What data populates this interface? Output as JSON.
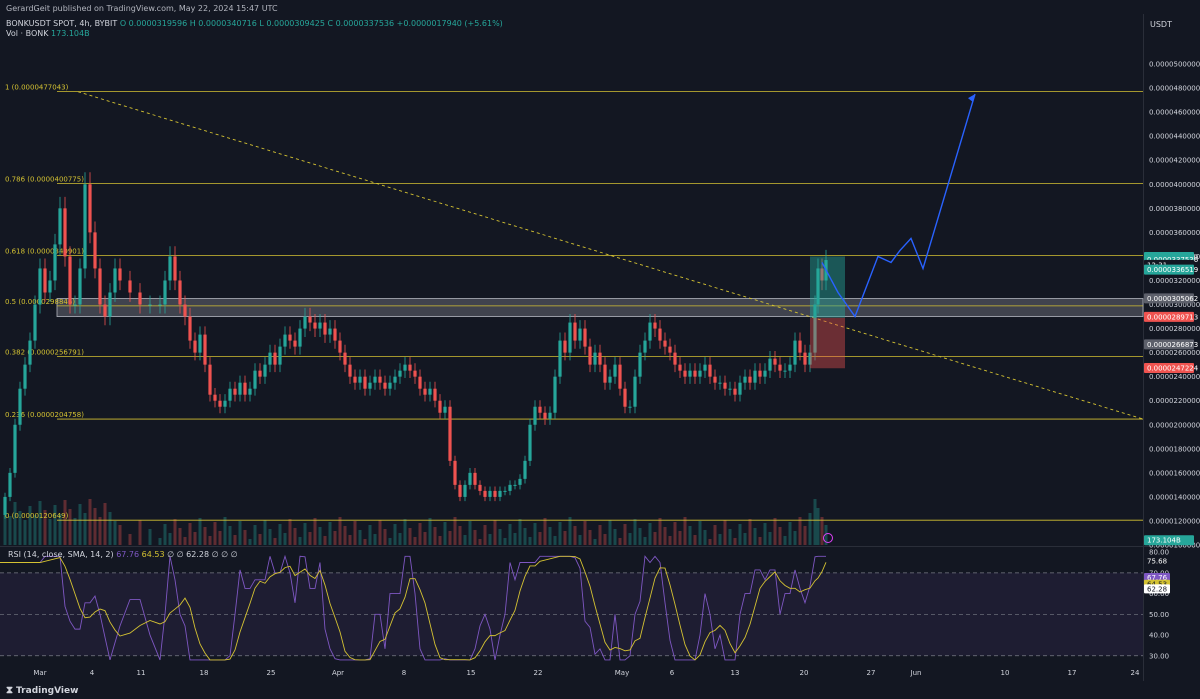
{
  "header": {
    "publisher": "GerardGeit published on TradingView.com, May 22, 2024 15:47 UTC",
    "symbol": "BONKUSDT SPOT, 4h, BYBIT",
    "ohlc": "O 0.0000319596  H 0.0000340716  L 0.0000309425  C 0.0000337536  +0.0000017940 (+5.61%)",
    "volume_label": "Vol · BONK",
    "volume_value": "173.104B",
    "currency": "USDT"
  },
  "rsi_header": {
    "label": "RSI (14, close, SMA, 14, 2)",
    "v1": "67.76",
    "v2": "64.53",
    "v3": "∅",
    "v4": "∅",
    "v5": "62.28",
    "v6": "∅ ∅ ∅"
  },
  "footer": {
    "brand": "TradingView"
  },
  "colors": {
    "background": "#131722",
    "fib_line": "#d4c232",
    "trendline": "#d4c232",
    "projection": "#2962ff",
    "up": "#26a69a",
    "down": "#ef5350",
    "rsi": "#7e57c2",
    "rsi_ma": "#d4c232"
  },
  "chart_data": {
    "type": "candlestick",
    "title": "BONKUSDT SPOT, 4h, BYBIT",
    "ylim": [
      1e-05,
      5.2e-05
    ],
    "yticks": [
      "0.0000500000",
      "0.0000480000",
      "0.0000460000",
      "0.0000440000",
      "0.0000420000",
      "0.0000400000",
      "0.0000380000",
      "0.0000360000",
      "0.0000340000",
      "0.0000320000",
      "0.0000300000",
      "0.0000280000",
      "0.0000260000",
      "0.0000240000",
      "0.0000220000",
      "0.0000200000",
      "0.0000180000",
      "0.0000160000",
      "0.0000140000",
      "0.0000120000",
      "0.0000100000"
    ],
    "xticks": [
      "Mar",
      "4",
      "11",
      "18",
      "25",
      "Apr",
      "8",
      "15",
      "22",
      "May",
      "6",
      "13",
      "20",
      "27",
      "Jun",
      "10",
      "17",
      "24"
    ],
    "fib_levels": [
      {
        "label": "1 (0.0000477043)",
        "value": 4.77043e-05
      },
      {
        "label": "0.786 (0.0000400775)",
        "value": 4.00775e-05
      },
      {
        "label": "0.618 (0.0000340901)",
        "value": 3.40901e-05
      },
      {
        "label": "0.5 (0.0000298846)",
        "value": 2.98846e-05
      },
      {
        "label": "0.382 (0.0000256791)",
        "value": 2.56791e-05
      },
      {
        "label": "0.236 (0.0000204758)",
        "value": 2.04758e-05
      },
      {
        "label": "0 (0.0000120649)",
        "value": 1.20649e-05
      }
    ],
    "price_path": [
      [
        0,
        1.25e-05
      ],
      [
        5,
        1.4e-05
      ],
      [
        10,
        1.6e-05
      ],
      [
        15,
        2e-05
      ],
      [
        20,
        2.3e-05
      ],
      [
        25,
        2.5e-05
      ],
      [
        30,
        2.7e-05
      ],
      [
        35,
        3e-05
      ],
      [
        40,
        3.3e-05
      ],
      [
        45,
        3.1e-05
      ],
      [
        50,
        3.2e-05
      ],
      [
        55,
        3.5e-05
      ],
      [
        60,
        3.8e-05
      ],
      [
        65,
        3.4e-05
      ],
      [
        70,
        3e-05
      ],
      [
        75,
        3e-05
      ],
      [
        80,
        3.3e-05
      ],
      [
        85,
        4e-05
      ],
      [
        90,
        3.6e-05
      ],
      [
        95,
        3.3e-05
      ],
      [
        100,
        3e-05
      ],
      [
        105,
        2.9e-05
      ],
      [
        110,
        3.1e-05
      ],
      [
        115,
        3.3e-05
      ],
      [
        120,
        3.2e-05
      ],
      [
        130,
        3.1e-05
      ],
      [
        140,
        3e-05
      ],
      [
        150,
        3e-05
      ],
      [
        160,
        3e-05
      ],
      [
        165,
        3.2e-05
      ],
      [
        170,
        3.4e-05
      ],
      [
        175,
        3.2e-05
      ],
      [
        180,
        3e-05
      ],
      [
        185,
        2.9e-05
      ],
      [
        190,
        2.7e-05
      ],
      [
        195,
        2.6e-05
      ],
      [
        200,
        2.75e-05
      ],
      [
        205,
        2.5e-05
      ],
      [
        210,
        2.25e-05
      ],
      [
        215,
        2.2e-05
      ],
      [
        220,
        2.15e-05
      ],
      [
        225,
        2.2e-05
      ],
      [
        230,
        2.3e-05
      ],
      [
        235,
        2.25e-05
      ],
      [
        240,
        2.35e-05
      ],
      [
        245,
        2.25e-05
      ],
      [
        250,
        2.3e-05
      ],
      [
        255,
        2.45e-05
      ],
      [
        260,
        2.4e-05
      ],
      [
        265,
        2.5e-05
      ],
      [
        270,
        2.6e-05
      ],
      [
        275,
        2.5e-05
      ],
      [
        280,
        2.65e-05
      ],
      [
        285,
        2.75e-05
      ],
      [
        290,
        2.7e-05
      ],
      [
        295,
        2.65e-05
      ],
      [
        300,
        2.8e-05
      ],
      [
        305,
        2.9e-05
      ],
      [
        310,
        2.85e-05
      ],
      [
        315,
        2.8e-05
      ],
      [
        320,
        2.85e-05
      ],
      [
        325,
        2.75e-05
      ],
      [
        330,
        2.8e-05
      ],
      [
        335,
        2.7e-05
      ],
      [
        340,
        2.6e-05
      ],
      [
        345,
        2.5e-05
      ],
      [
        350,
        2.4e-05
      ],
      [
        355,
        2.35e-05
      ],
      [
        360,
        2.4e-05
      ],
      [
        365,
        2.3e-05
      ],
      [
        370,
        2.35e-05
      ],
      [
        375,
        2.4e-05
      ],
      [
        380,
        2.35e-05
      ],
      [
        385,
        2.3e-05
      ],
      [
        390,
        2.35e-05
      ],
      [
        395,
        2.4e-05
      ],
      [
        400,
        2.45e-05
      ],
      [
        405,
        2.5e-05
      ],
      [
        410,
        2.45e-05
      ],
      [
        415,
        2.4e-05
      ],
      [
        420,
        2.3e-05
      ],
      [
        425,
        2.25e-05
      ],
      [
        430,
        2.3e-05
      ],
      [
        435,
        2.2e-05
      ],
      [
        440,
        2.1e-05
      ],
      [
        445,
        2.15e-05
      ],
      [
        450,
        1.7e-05
      ],
      [
        455,
        1.5e-05
      ],
      [
        460,
        1.4e-05
      ],
      [
        465,
        1.5e-05
      ],
      [
        470,
        1.6e-05
      ],
      [
        475,
        1.5e-05
      ],
      [
        480,
        1.45e-05
      ],
      [
        485,
        1.4e-05
      ],
      [
        490,
        1.45e-05
      ],
      [
        495,
        1.4e-05
      ],
      [
        500,
        1.45e-05
      ],
      [
        505,
        1.45e-05
      ],
      [
        510,
        1.5e-05
      ],
      [
        515,
        1.5e-05
      ],
      [
        520,
        1.55e-05
      ],
      [
        525,
        1.7e-05
      ],
      [
        530,
        2e-05
      ],
      [
        535,
        2.15e-05
      ],
      [
        540,
        2.1e-05
      ],
      [
        545,
        2.05e-05
      ],
      [
        550,
        2.1e-05
      ],
      [
        555,
        2.4e-05
      ],
      [
        560,
        2.7e-05
      ],
      [
        565,
        2.6e-05
      ],
      [
        570,
        2.85e-05
      ],
      [
        575,
        2.7e-05
      ],
      [
        580,
        2.8e-05
      ],
      [
        585,
        2.65e-05
      ],
      [
        590,
        2.5e-05
      ],
      [
        595,
        2.6e-05
      ],
      [
        600,
        2.5e-05
      ],
      [
        605,
        2.35e-05
      ],
      [
        610,
        2.4e-05
      ],
      [
        615,
        2.5e-05
      ],
      [
        620,
        2.3e-05
      ],
      [
        625,
        2.15e-05
      ],
      [
        630,
        2.15e-05
      ],
      [
        635,
        2.4e-05
      ],
      [
        640,
        2.6e-05
      ],
      [
        645,
        2.7e-05
      ],
      [
        650,
        2.85e-05
      ],
      [
        655,
        2.8e-05
      ],
      [
        660,
        2.7e-05
      ],
      [
        665,
        2.65e-05
      ],
      [
        670,
        2.6e-05
      ],
      [
        675,
        2.5e-05
      ],
      [
        680,
        2.45e-05
      ],
      [
        685,
        2.4e-05
      ],
      [
        690,
        2.45e-05
      ],
      [
        695,
        2.4e-05
      ],
      [
        700,
        2.45e-05
      ],
      [
        705,
        2.5e-05
      ],
      [
        710,
        2.4e-05
      ],
      [
        715,
        2.35e-05
      ],
      [
        720,
        2.35e-05
      ],
      [
        725,
        2.3e-05
      ],
      [
        730,
        2.3e-05
      ],
      [
        735,
        2.25e-05
      ],
      [
        740,
        2.35e-05
      ],
      [
        745,
        2.4e-05
      ],
      [
        750,
        2.35e-05
      ],
      [
        755,
        2.45e-05
      ],
      [
        760,
        2.4e-05
      ],
      [
        765,
        2.45e-05
      ],
      [
        770,
        2.55e-05
      ],
      [
        775,
        2.5e-05
      ],
      [
        780,
        2.45e-05
      ],
      [
        785,
        2.45e-05
      ],
      [
        790,
        2.5e-05
      ],
      [
        795,
        2.7e-05
      ],
      [
        800,
        2.6e-05
      ],
      [
        805,
        2.5e-05
      ],
      [
        810,
        2.6e-05
      ],
      [
        815,
        3e-05
      ],
      [
        818,
        3.3e-05
      ],
      [
        822,
        3.2e-05
      ],
      [
        826,
        3.37e-05
      ]
    ],
    "trendline": [
      [
        78,
        4.77e-05
      ],
      [
        1142,
        2.05e-05
      ]
    ],
    "projection": [
      [
        822,
        3.35e-05
      ],
      [
        838,
        3.1e-05
      ],
      [
        855,
        2.9e-05
      ],
      [
        878,
        3.4e-05
      ],
      [
        891,
        3.35e-05
      ],
      [
        900,
        3.45e-05
      ],
      [
        911,
        3.55e-05
      ],
      [
        923,
        3.3e-05
      ],
      [
        975,
        4.75e-05
      ]
    ],
    "price_badges": [
      {
        "label": "0.0000339560",
        "value": 3.3956e-05,
        "color": "#26a69a"
      },
      {
        "label": "0.0000337536",
        "value": 3.37536e-05,
        "color": "#26a69a"
      },
      {
        "label": "12:31",
        "value": 3.33e-05,
        "color": "#131722"
      },
      {
        "label": "0.0000336519",
        "value": 3.29e-05,
        "color": "#26a69a"
      },
      {
        "label": "0.0000305062",
        "value": 3.05062e-05,
        "color": "#5d606b"
      },
      {
        "label": "0.0000289713",
        "value": 2.89713e-05,
        "color": "#ef5350"
      },
      {
        "label": "0.0000266873",
        "value": 2.66873e-05,
        "color": "#5d606b"
      },
      {
        "label": "0.0000247224",
        "value": 2.47224e-05,
        "color": "#ef5350"
      },
      {
        "label": "173.104B",
        "value": 1.04e-05,
        "color": "#26a69a"
      }
    ],
    "rsi": {
      "ylim": [
        27,
        82
      ],
      "yticks": [
        "80.00",
        "70.00",
        "60.00",
        "50.00",
        "40.00",
        "30.00"
      ],
      "bands": [
        70,
        50,
        30
      ],
      "badges": [
        {
          "label": "75.68",
          "value": 75.68,
          "color": "#131722"
        },
        {
          "label": "67.76",
          "value": 67.76,
          "color": "#7e57c2"
        },
        {
          "label": "64.53",
          "value": 64.53,
          "color": "#d4c232"
        },
        {
          "label": "62.28",
          "value": 62.28,
          "color": "#ffffff"
        }
      ]
    }
  }
}
